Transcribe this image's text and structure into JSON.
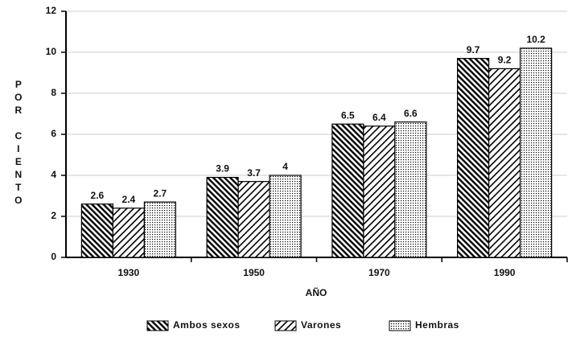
{
  "chart_data": {
    "type": "bar",
    "categories": [
      "1930",
      "1950",
      "1970",
      "1990"
    ],
    "series": [
      {
        "name": "Ambos sexos",
        "color": "#000000",
        "pattern": "backslash",
        "values": [
          2.6,
          3.9,
          6.5,
          9.7
        ]
      },
      {
        "name": "Varones",
        "color": "#000000",
        "pattern": "slash",
        "values": [
          2.4,
          3.7,
          6.4,
          9.2
        ]
      },
      {
        "name": "Hembras",
        "color": "#000000",
        "pattern": "dots",
        "values": [
          2.7,
          4,
          6.6,
          10.2
        ]
      }
    ],
    "ylabel": "POR CIENTO",
    "xlabel": "AÑO",
    "ylim": [
      0,
      12
    ],
    "yticks": [
      0,
      2,
      4,
      6,
      8,
      10,
      12
    ],
    "grid": true,
    "legend": "bottom"
  }
}
